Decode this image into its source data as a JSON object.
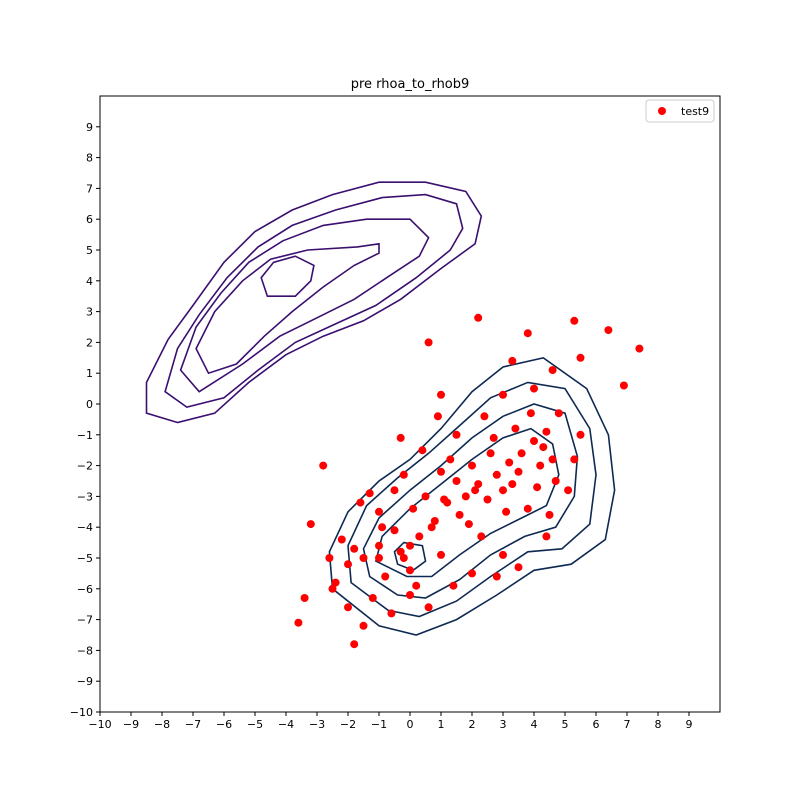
{
  "chart_data": {
    "type": "scatter",
    "title": "pre rhoa_to_rhob9",
    "xlabel": "",
    "ylabel": "",
    "xlim": [
      -10,
      10
    ],
    "ylim": [
      -10,
      10
    ],
    "x_ticks": [
      -10,
      -9,
      -8,
      -7,
      -6,
      -5,
      -4,
      -3,
      -2,
      -1,
      0,
      1,
      2,
      3,
      4,
      5,
      6,
      7,
      8,
      9
    ],
    "y_ticks": [
      -10,
      -9,
      -8,
      -7,
      -6,
      -5,
      -4,
      -3,
      -2,
      -1,
      0,
      1,
      2,
      3,
      4,
      5,
      6,
      7,
      8,
      9
    ],
    "tick_label_texts": {
      "x": [
        "−10",
        "−9",
        "−8",
        "−7",
        "−6",
        "−5",
        "−4",
        "−3",
        "−2",
        "−1",
        "0",
        "1",
        "2",
        "3",
        "4",
        "5",
        "6",
        "7",
        "8",
        "9"
      ],
      "y": [
        "−10",
        "−9",
        "−8",
        "−7",
        "−6",
        "−5",
        "−4",
        "−3",
        "−2",
        "−1",
        "0",
        "1",
        "2",
        "3",
        "4",
        "5",
        "6",
        "7",
        "8",
        "9"
      ]
    },
    "grid": false,
    "legend": {
      "position": "top-right",
      "entries": [
        {
          "label": "test9",
          "color": "#ff0000",
          "marker": "circle"
        }
      ]
    },
    "series": [
      {
        "name": "test9",
        "color": "#ff0000",
        "marker": "circle",
        "points": [
          [
            0,
            -4.6
          ],
          [
            0.3,
            -4.3
          ],
          [
            -0.5,
            -4.1
          ],
          [
            0.8,
            -3.8
          ],
          [
            1.2,
            -3.2
          ],
          [
            1.8,
            -3.0
          ],
          [
            2.2,
            -2.6
          ],
          [
            2.8,
            -2.3
          ],
          [
            3.2,
            -1.9
          ],
          [
            3.6,
            -1.6
          ],
          [
            4.0,
            -1.2
          ],
          [
            2.5,
            -3.1
          ],
          [
            3.0,
            -2.8
          ],
          [
            3.5,
            -2.2
          ],
          [
            4.2,
            -2.0
          ],
          [
            1.5,
            -2.5
          ],
          [
            0.5,
            -3.0
          ],
          [
            -1.0,
            -4.6
          ],
          [
            -1.5,
            -5.0
          ],
          [
            -2.0,
            -5.2
          ],
          [
            -0.8,
            -5.6
          ],
          [
            0.2,
            -5.9
          ],
          [
            -1.2,
            -6.3
          ],
          [
            -2.5,
            -6.0
          ],
          [
            -3.6,
            -7.1
          ],
          [
            -1.8,
            -7.8
          ],
          [
            -2.8,
            -2.0
          ],
          [
            -3.2,
            -3.9
          ],
          [
            -1.3,
            -2.9
          ],
          [
            0.6,
            2.0
          ],
          [
            2.2,
            2.8
          ],
          [
            3.8,
            2.3
          ],
          [
            5.3,
            2.7
          ],
          [
            6.4,
            2.4
          ],
          [
            7.4,
            1.8
          ],
          [
            6.9,
            0.6
          ],
          [
            5.5,
            1.5
          ],
          [
            4.6,
            1.1
          ],
          [
            3.3,
            1.4
          ],
          [
            1.0,
            0.3
          ],
          [
            0.9,
            -0.4
          ],
          [
            -0.3,
            -1.1
          ],
          [
            5.5,
            -1.0
          ],
          [
            5.1,
            -2.8
          ],
          [
            4.5,
            -3.6
          ],
          [
            4.4,
            -4.3
          ],
          [
            3.0,
            -4.9
          ],
          [
            2.8,
            -5.6
          ],
          [
            3.5,
            -5.3
          ],
          [
            1.4,
            -5.9
          ],
          [
            2.0,
            -5.5
          ],
          [
            -0.6,
            -6.8
          ],
          [
            0.6,
            -6.6
          ],
          [
            -2.0,
            -6.6
          ],
          [
            -3.4,
            -6.3
          ],
          [
            -1.5,
            -7.2
          ],
          [
            0.0,
            -6.2
          ],
          [
            -1.0,
            -3.5
          ],
          [
            -0.2,
            -2.3
          ],
          [
            0.4,
            -1.5
          ],
          [
            1.5,
            -1.0
          ],
          [
            2.4,
            -0.4
          ],
          [
            3.0,
            0.3
          ],
          [
            4.0,
            0.5
          ],
          [
            4.8,
            -0.3
          ],
          [
            5.3,
            -1.8
          ],
          [
            4.7,
            -2.5
          ],
          [
            3.8,
            -3.4
          ],
          [
            2.3,
            -4.3
          ],
          [
            1.0,
            -4.9
          ],
          [
            0.0,
            -5.4
          ],
          [
            -0.3,
            -4.8
          ],
          [
            1.6,
            -3.6
          ],
          [
            2.6,
            -1.6
          ],
          [
            3.4,
            -0.8
          ],
          [
            4.3,
            -1.4
          ],
          [
            2.0,
            -2.0
          ],
          [
            1.0,
            -2.2
          ],
          [
            -0.5,
            -2.8
          ],
          [
            -1.6,
            -3.2
          ],
          [
            -2.2,
            -4.4
          ],
          [
            -2.6,
            -5.0
          ],
          [
            -2.4,
            -5.8
          ],
          [
            -1.0,
            -5.0
          ],
          [
            0.7,
            -4.0
          ],
          [
            1.9,
            -3.9
          ],
          [
            3.1,
            -3.5
          ],
          [
            4.1,
            -2.7
          ],
          [
            4.6,
            -1.8
          ],
          [
            3.9,
            -0.3
          ],
          [
            2.7,
            -1.1
          ],
          [
            1.3,
            -1.8
          ],
          [
            0.1,
            -3.4
          ],
          [
            -0.9,
            -4.0
          ],
          [
            -1.8,
            -4.7
          ],
          [
            -0.2,
            -5.0
          ],
          [
            1.1,
            -3.1
          ],
          [
            2.1,
            -2.8
          ],
          [
            3.3,
            -2.6
          ],
          [
            4.4,
            -0.9
          ]
        ]
      }
    ],
    "contours": [
      {
        "color": "#3b0f70",
        "levels": [
          [
            [
              -7.5,
              -0.6
            ],
            [
              -8.5,
              -0.3
            ],
            [
              -8.5,
              0.7
            ],
            [
              -7.8,
              2.1
            ],
            [
              -7.0,
              3.2
            ],
            [
              -6.0,
              4.6
            ],
            [
              -5.0,
              5.6
            ],
            [
              -3.8,
              6.3
            ],
            [
              -2.5,
              6.8
            ],
            [
              -1.0,
              7.2
            ],
            [
              0.5,
              7.2
            ],
            [
              1.8,
              6.9
            ],
            [
              2.3,
              6.1
            ],
            [
              2.1,
              5.2
            ],
            [
              1.0,
              4.4
            ],
            [
              -0.3,
              3.4
            ],
            [
              -1.5,
              2.7
            ],
            [
              -2.8,
              2.2
            ],
            [
              -4.0,
              1.6
            ],
            [
              -5.2,
              0.7
            ],
            [
              -6.3,
              -0.3
            ],
            [
              -7.5,
              -0.6
            ]
          ],
          [
            [
              -7.2,
              -0.1
            ],
            [
              -7.9,
              0.4
            ],
            [
              -7.5,
              1.8
            ],
            [
              -6.8,
              2.9
            ],
            [
              -5.9,
              4.1
            ],
            [
              -4.9,
              5.1
            ],
            [
              -3.8,
              5.8
            ],
            [
              -2.4,
              6.3
            ],
            [
              -0.9,
              6.7
            ],
            [
              0.5,
              6.8
            ],
            [
              1.5,
              6.5
            ],
            [
              1.7,
              5.7
            ],
            [
              1.3,
              5.0
            ],
            [
              0.2,
              4.1
            ],
            [
              -1.1,
              3.2
            ],
            [
              -2.4,
              2.6
            ],
            [
              -3.7,
              2.0
            ],
            [
              -4.9,
              1.1
            ],
            [
              -6.0,
              0.2
            ],
            [
              -7.2,
              -0.1
            ]
          ],
          [
            [
              -6.8,
              0.4
            ],
            [
              -7.4,
              1.1
            ],
            [
              -6.9,
              2.5
            ],
            [
              -6.1,
              3.6
            ],
            [
              -5.2,
              4.6
            ],
            [
              -4.1,
              5.3
            ],
            [
              -2.8,
              5.8
            ],
            [
              -1.4,
              6.0
            ],
            [
              0.0,
              6.0
            ],
            [
              0.6,
              5.4
            ],
            [
              0.3,
              4.8
            ],
            [
              -0.6,
              4.2
            ],
            [
              -1.8,
              3.4
            ],
            [
              -3.0,
              2.8
            ],
            [
              -4.2,
              2.2
            ],
            [
              -5.4,
              1.3
            ],
            [
              -6.8,
              0.4
            ]
          ],
          [
            [
              -6.5,
              1.0
            ],
            [
              -6.9,
              1.8
            ],
            [
              -6.3,
              3.0
            ],
            [
              -5.4,
              4.0
            ],
            [
              -4.5,
              4.7
            ],
            [
              -3.3,
              5.0
            ],
            [
              -1.7,
              5.1
            ],
            [
              -1.0,
              5.2
            ],
            [
              -1.0,
              4.9
            ],
            [
              -1.8,
              4.5
            ],
            [
              -2.8,
              3.8
            ],
            [
              -3.8,
              3.0
            ],
            [
              -4.7,
              2.2
            ],
            [
              -5.6,
              1.3
            ],
            [
              -6.5,
              1.0
            ]
          ],
          [
            [
              -4.6,
              3.5
            ],
            [
              -4.8,
              4.1
            ],
            [
              -4.4,
              4.6
            ],
            [
              -3.7,
              4.8
            ],
            [
              -3.1,
              4.5
            ],
            [
              -3.2,
              4.0
            ],
            [
              -3.7,
              3.5
            ],
            [
              -4.6,
              3.5
            ]
          ]
        ]
      },
      {
        "color": "#0f2a52",
        "levels": [
          [
            [
              -1.0,
              -7.2
            ],
            [
              0.2,
              -7.5
            ],
            [
              1.5,
              -7.0
            ],
            [
              2.8,
              -6.2
            ],
            [
              4.0,
              -5.4
            ],
            [
              5.2,
              -5.2
            ],
            [
              6.3,
              -4.4
            ],
            [
              6.6,
              -2.8
            ],
            [
              6.4,
              -1.0
            ],
            [
              5.7,
              0.5
            ],
            [
              4.3,
              1.5
            ],
            [
              3.0,
              1.2
            ],
            [
              2.0,
              0.4
            ],
            [
              1.0,
              -0.8
            ],
            [
              0.0,
              -1.8
            ],
            [
              -1.0,
              -2.5
            ],
            [
              -2.0,
              -3.5
            ],
            [
              -2.6,
              -4.8
            ],
            [
              -2.5,
              -6.0
            ],
            [
              -1.0,
              -7.2
            ]
          ],
          [
            [
              -0.7,
              -6.7
            ],
            [
              0.3,
              -6.9
            ],
            [
              1.5,
              -6.4
            ],
            [
              2.6,
              -5.6
            ],
            [
              3.8,
              -4.8
            ],
            [
              4.9,
              -4.7
            ],
            [
              5.8,
              -3.9
            ],
            [
              6.0,
              -2.3
            ],
            [
              5.8,
              -0.8
            ],
            [
              5.0,
              0.5
            ],
            [
              3.8,
              0.7
            ],
            [
              2.6,
              0.2
            ],
            [
              1.6,
              -0.7
            ],
            [
              0.6,
              -1.6
            ],
            [
              -0.4,
              -2.4
            ],
            [
              -1.4,
              -3.3
            ],
            [
              -2.0,
              -4.6
            ],
            [
              -1.9,
              -5.8
            ],
            [
              -0.7,
              -6.7
            ]
          ],
          [
            [
              -0.4,
              -6.2
            ],
            [
              0.5,
              -6.3
            ],
            [
              1.6,
              -5.7
            ],
            [
              2.6,
              -4.9
            ],
            [
              3.7,
              -4.3
            ],
            [
              4.7,
              -4.0
            ],
            [
              5.3,
              -3.0
            ],
            [
              5.4,
              -1.7
            ],
            [
              5.0,
              -0.3
            ],
            [
              4.0,
              0.0
            ],
            [
              3.0,
              -0.4
            ],
            [
              2.0,
              -1.1
            ],
            [
              1.0,
              -2.0
            ],
            [
              0.0,
              -2.8
            ],
            [
              -1.0,
              -3.7
            ],
            [
              -1.5,
              -4.7
            ],
            [
              -1.3,
              -5.6
            ],
            [
              -0.4,
              -6.2
            ]
          ],
          [
            [
              -0.1,
              -5.6
            ],
            [
              0.7,
              -5.6
            ],
            [
              1.6,
              -4.9
            ],
            [
              2.6,
              -4.2
            ],
            [
              3.6,
              -3.7
            ],
            [
              4.4,
              -3.3
            ],
            [
              4.8,
              -2.3
            ],
            [
              4.6,
              -1.3
            ],
            [
              3.9,
              -0.8
            ],
            [
              3.0,
              -1.1
            ],
            [
              2.0,
              -1.8
            ],
            [
              1.0,
              -2.6
            ],
            [
              0.0,
              -3.4
            ],
            [
              -0.9,
              -4.3
            ],
            [
              -1.1,
              -5.1
            ],
            [
              -0.1,
              -5.6
            ]
          ],
          [
            [
              -0.2,
              -4.5
            ],
            [
              0.4,
              -4.6
            ],
            [
              0.5,
              -5.1
            ],
            [
              0.1,
              -5.4
            ],
            [
              -0.4,
              -5.2
            ],
            [
              -0.5,
              -4.8
            ],
            [
              -0.2,
              -4.5
            ]
          ]
        ]
      }
    ]
  }
}
